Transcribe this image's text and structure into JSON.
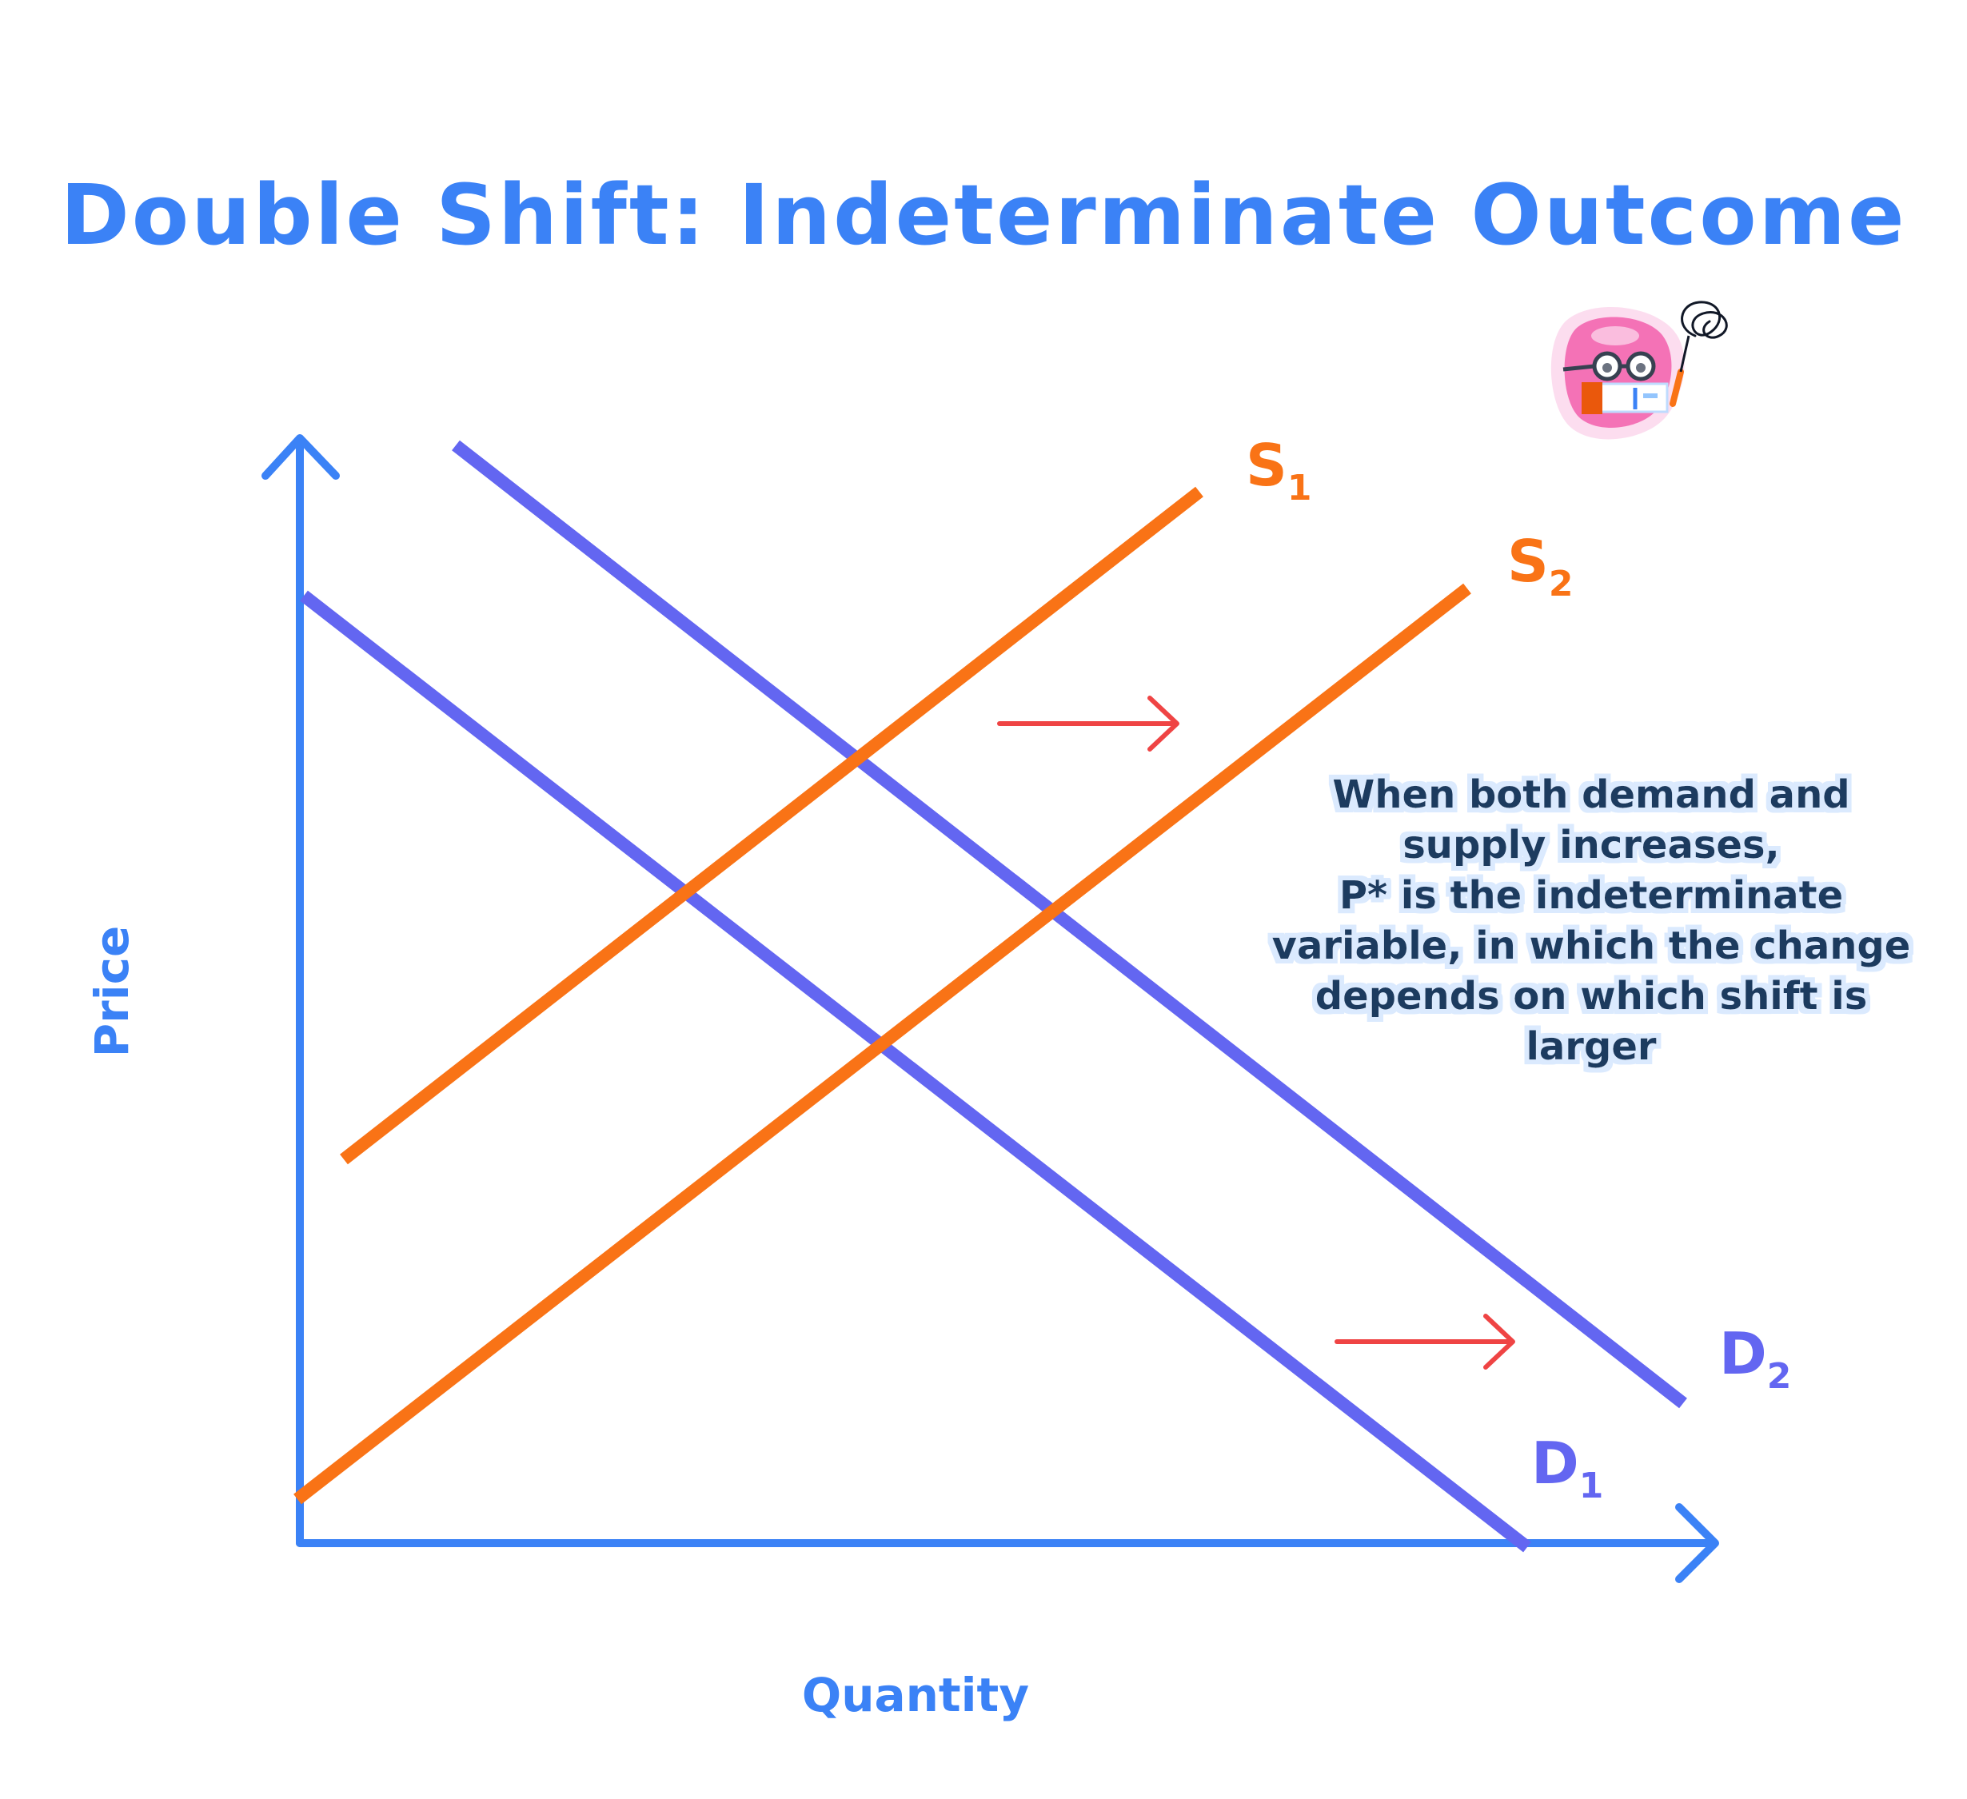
{
  "title": "Double Shift: Indeterminate Outcome",
  "axes": {
    "x_label": "Quantity",
    "y_label": "Price"
  },
  "curves": {
    "s1": {
      "letter": "S",
      "sub": "1"
    },
    "s2": {
      "letter": "S",
      "sub": "2"
    },
    "d1": {
      "letter": "D",
      "sub": "1"
    },
    "d2": {
      "letter": "D",
      "sub": "2"
    }
  },
  "note_lines": [
    "When both demand and",
    "supply increases,",
    "P* is the indeterminate",
    "variable, in which the change",
    "depends on which shift is",
    "larger"
  ],
  "colors": {
    "title": "#3b82f6",
    "axis": "#3b82f6",
    "supply": "#f97316",
    "demand": "#6366f1",
    "arrow": "#ef4444",
    "note_text": "#1e3a5f",
    "note_glow": "#dbeafe",
    "mascot_body": "#f472b6"
  },
  "icons": [
    "right-arrow-icon",
    "mascot-icon"
  ]
}
